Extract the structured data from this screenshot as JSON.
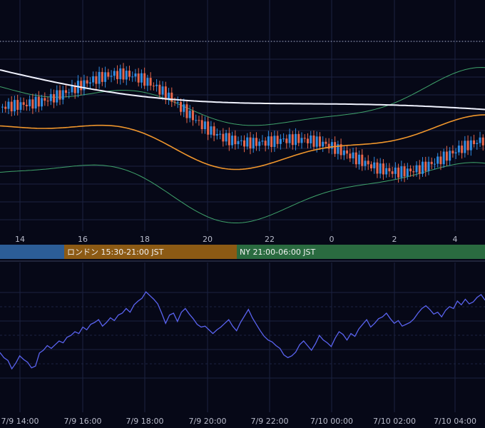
{
  "colors": {
    "background": "#060817",
    "grid": "#1c2240",
    "up_candle": "#2f8de4",
    "down_candle": "#e8664a",
    "sma_long": "#f1f3ff",
    "ema": "#f0962c",
    "bollinger": "#3fa36b",
    "oscillator": "#5a63f0",
    "session_tokyo": "#2c5d97",
    "session_london": "#8c5a14",
    "session_ny": "#2a6b40"
  },
  "sessions": [
    {
      "label": "",
      "color_key": "session_tokyo"
    },
    {
      "label": "ロンドン 15:30-21:00 JST",
      "color_key": "session_london"
    },
    {
      "label": "NY 21:00-06:00 JST",
      "color_key": "session_ny"
    }
  ],
  "chart_data": [
    {
      "type": "candlestick",
      "x_ticks": [
        "14",
        "16",
        "18",
        "20",
        "22",
        "0",
        "2",
        "4"
      ],
      "series": [
        {
          "kind": "candles",
          "count": 160
        },
        {
          "kind": "line",
          "color_key": "sma_long"
        },
        {
          "kind": "line",
          "color_key": "ema"
        },
        {
          "kind": "band",
          "color_key": "bollinger"
        }
      ],
      "grid": true
    },
    {
      "type": "line",
      "x_ticks": [
        "7/9 14:00",
        "7/9 16:00",
        "7/9 18:00",
        "7/9 20:00",
        "7/9 22:00",
        "7/10 00:00",
        "7/10 02:00",
        "7/10 04:00"
      ],
      "series": [
        {
          "kind": "line",
          "color_key": "oscillator",
          "values": [
            55,
            44,
            38,
            20,
            32,
            48,
            40,
            34,
            22,
            26,
            54,
            60,
            70,
            64,
            72,
            80,
            76,
            88,
            92,
            100,
            96,
            110,
            104,
            116,
            120,
            126,
            112,
            120,
            130,
            124,
            136,
            140,
            150,
            142,
            158,
            166,
            172,
            186,
            178,
            170,
            160,
            140,
            118,
            136,
            140,
            122,
            142,
            150,
            138,
            128,
            116,
            110,
            112,
            104,
            96,
            104,
            110,
            118,
            126,
            112,
            102,
            120,
            134,
            148,
            130,
            116,
            102,
            90,
            82,
            78,
            70,
            64,
            50,
            44,
            48,
            56,
            72,
            80,
            70,
            60,
            74,
            92,
            82,
            76,
            68,
            86,
            100,
            94,
            82,
            96,
            90,
            106,
            116,
            126,
            110,
            118,
            128,
            132,
            140,
            128,
            118,
            124,
            112,
            116,
            120,
            128,
            140,
            150,
            156,
            148,
            138,
            142,
            132,
            146,
            154,
            150,
            166,
            158,
            170,
            160,
            164,
            174,
            180,
            168
          ]
        }
      ],
      "grid": true
    }
  ]
}
